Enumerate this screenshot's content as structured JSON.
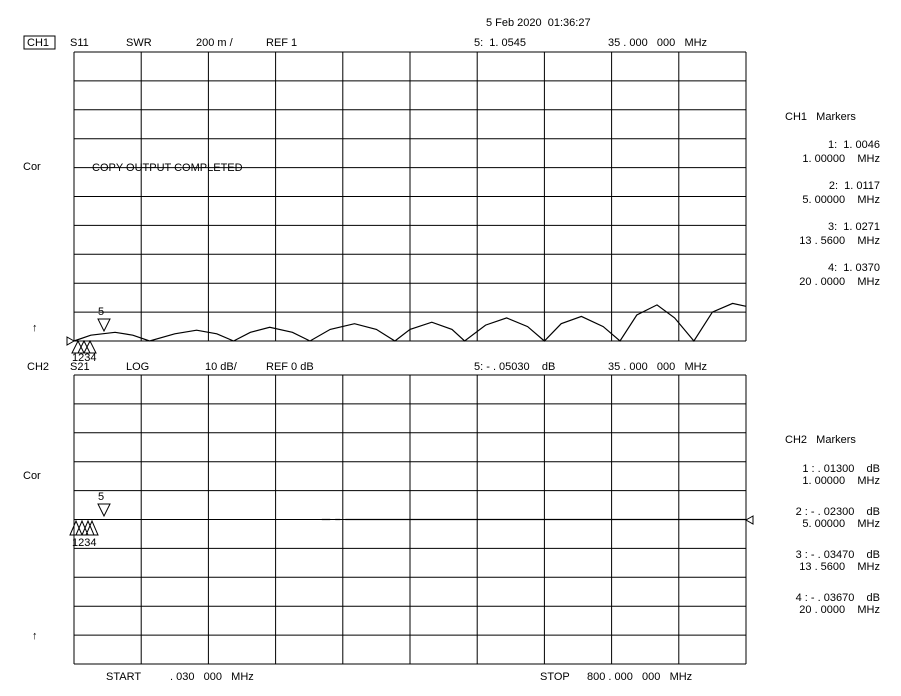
{
  "timestamp": "5 Feb 2020  01:36:27",
  "chart_data": [
    {
      "type": "line",
      "channel": "CH1",
      "parameter": "S11",
      "format": "SWR",
      "scale": "200 m /",
      "reference": "REF 1",
      "marker_readout": "5:  1. 0545",
      "marker_frequency": "35 . 000   000   MHz",
      "side_label": "Cor",
      "ref_pointer": "↑",
      "message": "COPY OUTPUT COMPLETED",
      "marker_tags": [
        "5",
        "1234"
      ],
      "markers_title": "CH1   Markers",
      "markers": [
        {
          "value": "1:  1. 0046",
          "frequency": "1. 00000    MHz"
        },
        {
          "value": "2:  1. 0117",
          "frequency": "5. 00000    MHz"
        },
        {
          "value": "3:  1. 0271",
          "frequency": "13 . 5600    MHz"
        },
        {
          "value": "4:  1. 0370",
          "frequency": "20 . 0000    MHz"
        }
      ],
      "xlim": [
        0.03,
        800
      ],
      "ylim": [
        1,
        3
      ],
      "yticks": [
        1,
        1.2,
        1.4,
        1.6,
        1.8,
        2,
        2.2,
        2.4,
        2.6,
        2.8,
        3
      ],
      "x": [
        0.03,
        20,
        49,
        70,
        90,
        120,
        146,
        170,
        190,
        210,
        233,
        260,
        281,
        305,
        334,
        360,
        382,
        400,
        426,
        450,
        465,
        490,
        515,
        540,
        560,
        580,
        604,
        630,
        650,
        670,
        694,
        715,
        738,
        760,
        784,
        800
      ],
      "series": [
        {
          "color": "#000000",
          "values": [
            1.0,
            1.04,
            1.06,
            1.04,
            1.0,
            1.05,
            1.075,
            1.05,
            1.0,
            1.06,
            1.095,
            1.06,
            1.0,
            1.08,
            1.12,
            1.08,
            1.0,
            1.08,
            1.13,
            1.08,
            1.0,
            1.11,
            1.16,
            1.1,
            1.0,
            1.12,
            1.17,
            1.1,
            1.0,
            1.18,
            1.25,
            1.16,
            1.0,
            1.2,
            1.26,
            1.24
          ]
        }
      ]
    },
    {
      "type": "line",
      "channel": "CH2",
      "parameter": "S21",
      "format": "LOG",
      "scale": "10 dB/",
      "reference": "REF 0 dB",
      "marker_readout": "5: - . 05030    dB",
      "marker_frequency": "35 . 000   000   MHz",
      "side_label": "Cor",
      "ref_pointer": "↑",
      "marker_tags": [
        "5",
        "1234"
      ],
      "markers_title": "CH2   Markers",
      "markers": [
        {
          "value": "1 : . 01300    dB",
          "frequency": "1. 00000    MHz"
        },
        {
          "value": "2 : - . 02300    dB",
          "frequency": "5. 00000    MHz"
        },
        {
          "value": "3 : - . 03470    dB",
          "frequency": "13 . 5600    MHz"
        },
        {
          "value": "4 : - . 03670    dB",
          "frequency": "20 . 0000    MHz"
        }
      ],
      "xlim": [
        0.03,
        800
      ],
      "ylim": [
        -50,
        50
      ],
      "yticks": [
        -50,
        -40,
        -30,
        -20,
        -10,
        0,
        10,
        20,
        30,
        40,
        50
      ],
      "x": [
        295,
        305,
        308,
        311,
        317,
        320,
        323,
        800
      ],
      "series": [
        {
          "color": "#000000",
          "values": [
            0,
            0,
            null,
            0,
            0,
            null,
            0,
            0
          ]
        }
      ],
      "start_label": "START",
      "start_value": ". 030   000   MHz",
      "stop_label": "STOP",
      "stop_value": "800 . 000   000   MHz"
    }
  ]
}
